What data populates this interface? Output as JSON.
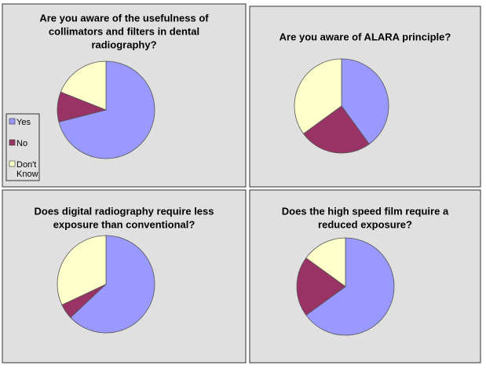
{
  "chart_data": [
    {
      "type": "pie",
      "title": [
        "Are you aware of the usefulness of",
        "collimators and filters in dental",
        "radiography?"
      ],
      "categories": [
        "Yes",
        "No",
        "Don't Know"
      ],
      "values": [
        71,
        10,
        19
      ],
      "colors": [
        "#9999ff",
        "#993366",
        "#ffffcc"
      ],
      "legend": "left"
    },
    {
      "type": "pie",
      "title": [
        "Are you aware of  ALARA principle?"
      ],
      "categories": [
        "Yes",
        "No",
        "Don't Know"
      ],
      "values": [
        40,
        25,
        35
      ],
      "colors": [
        "#9999ff",
        "#993366",
        "#ffffcc"
      ]
    },
    {
      "type": "pie",
      "title": [
        "Does digital radiography require less",
        "exposure than conventional?"
      ],
      "categories": [
        "Yes",
        "No",
        "Don't Know"
      ],
      "values": [
        63,
        5,
        32
      ],
      "colors": [
        "#9999ff",
        "#993366",
        "#ffffcc"
      ]
    },
    {
      "type": "pie",
      "title": [
        "Does the high speed film require a",
        "reduced exposure?"
      ],
      "categories": [
        "Yes",
        "No",
        "Don't Know"
      ],
      "values": [
        65,
        20,
        15
      ],
      "colors": [
        "#9999ff",
        "#993366",
        "#ffffcc"
      ]
    }
  ]
}
